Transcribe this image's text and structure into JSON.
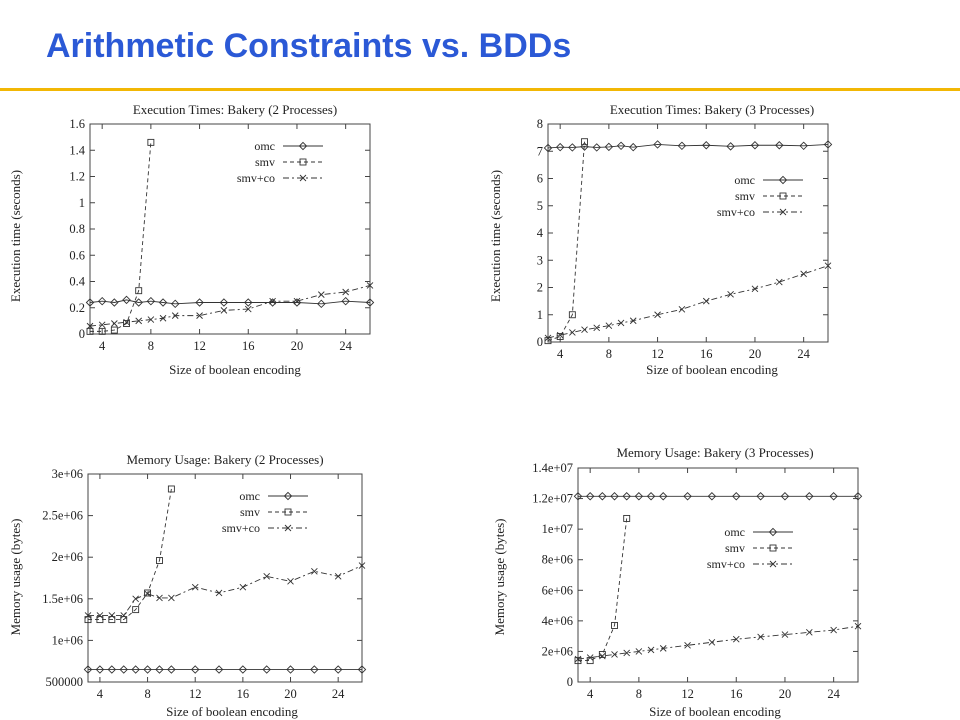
{
  "slide": {
    "title": "Arithmetic Constraints vs. BDDs"
  },
  "chart_data": [
    {
      "id": "c1",
      "type": "line",
      "title": "Execution Times: Bakery (2 Processes)",
      "xlabel": "Size of boolean encoding",
      "ylabel": "Execution time (seconds)",
      "xlim": [
        3,
        26
      ],
      "ylim": [
        0,
        1.6
      ],
      "xticks": [
        4,
        8,
        12,
        16,
        20,
        24
      ],
      "yticks": [
        0,
        0.2,
        0.4,
        0.6,
        0.8,
        1,
        1.2,
        1.4,
        1.6
      ],
      "ytick_labels": [
        "0",
        "0.2",
        "0.4",
        "0.6",
        "0.8",
        "1",
        "1.2",
        "1.4",
        "1.6"
      ],
      "legend_position": "top-right",
      "series": [
        {
          "name": "omc",
          "marker": "diamond",
          "dash": "",
          "x": [
            3,
            4,
            5,
            6,
            7,
            8,
            9,
            10,
            12,
            14,
            16,
            18,
            20,
            22,
            24,
            26
          ],
          "y": [
            0.24,
            0.25,
            0.24,
            0.26,
            0.24,
            0.25,
            0.24,
            0.23,
            0.24,
            0.24,
            0.24,
            0.24,
            0.24,
            0.23,
            0.25,
            0.24
          ]
        },
        {
          "name": "smv",
          "marker": "square",
          "dash": "4,3",
          "x": [
            3,
            4,
            5,
            6,
            7,
            8
          ],
          "y": [
            0.02,
            0.02,
            0.03,
            0.08,
            0.33,
            1.46
          ]
        },
        {
          "name": "smv+co",
          "marker": "cross",
          "dash": "6,3,2,3",
          "x": [
            3,
            4,
            5,
            6,
            7,
            8,
            9,
            10,
            12,
            14,
            16,
            18,
            20,
            22,
            24,
            26
          ],
          "y": [
            0.06,
            0.07,
            0.08,
            0.09,
            0.1,
            0.11,
            0.12,
            0.14,
            0.14,
            0.18,
            0.19,
            0.25,
            0.25,
            0.3,
            0.32,
            0.37
          ]
        }
      ]
    },
    {
      "id": "c2",
      "type": "line",
      "title": "Execution Times: Bakery (3 Processes)",
      "xlabel": "Size of boolean encoding",
      "ylabel": "Execution time (seconds)",
      "xlim": [
        3,
        26
      ],
      "ylim": [
        0,
        8
      ],
      "xticks": [
        4,
        8,
        12,
        16,
        20,
        24
      ],
      "yticks": [
        0,
        1,
        2,
        3,
        4,
        5,
        6,
        7,
        8
      ],
      "ytick_labels": [
        "0",
        "1",
        "2",
        "3",
        "4",
        "5",
        "6",
        "7",
        "8"
      ],
      "legend_position": "right",
      "series": [
        {
          "name": "omc",
          "marker": "diamond",
          "dash": "",
          "x": [
            3,
            4,
            5,
            6,
            7,
            8,
            9,
            10,
            12,
            14,
            16,
            18,
            20,
            22,
            24,
            26
          ],
          "y": [
            7.12,
            7.15,
            7.14,
            7.17,
            7.14,
            7.16,
            7.2,
            7.15,
            7.25,
            7.2,
            7.22,
            7.18,
            7.22,
            7.22,
            7.2,
            7.25
          ]
        },
        {
          "name": "smv",
          "marker": "square",
          "dash": "4,3",
          "x": [
            3,
            4,
            5,
            6
          ],
          "y": [
            0.05,
            0.2,
            1.0,
            7.35
          ]
        },
        {
          "name": "smv+co",
          "marker": "cross",
          "dash": "6,3,2,3",
          "x": [
            3,
            4,
            5,
            6,
            7,
            8,
            9,
            10,
            12,
            14,
            16,
            18,
            20,
            22,
            24,
            26
          ],
          "y": [
            0.15,
            0.25,
            0.35,
            0.45,
            0.52,
            0.6,
            0.7,
            0.78,
            1.0,
            1.2,
            1.5,
            1.75,
            1.95,
            2.2,
            2.5,
            2.8
          ]
        }
      ]
    },
    {
      "id": "c3",
      "type": "line",
      "title": "Memory Usage: Bakery (2 Processes)",
      "xlabel": "Size of boolean encoding",
      "ylabel": "Memory usage (bytes)",
      "xlim": [
        3,
        26
      ],
      "ylim": [
        500000,
        3000000
      ],
      "xticks": [
        4,
        8,
        12,
        16,
        20,
        24
      ],
      "yticks": [
        500000,
        1000000,
        1500000,
        2000000,
        2500000,
        3000000
      ],
      "ytick_labels": [
        "500000",
        "1e+06",
        "1.5e+06",
        "2e+06",
        "2.5e+06",
        "3e+06"
      ],
      "legend_position": "top-right",
      "series": [
        {
          "name": "omc",
          "marker": "diamond",
          "dash": "",
          "x": [
            3,
            4,
            5,
            6,
            7,
            8,
            9,
            10,
            12,
            14,
            16,
            18,
            20,
            22,
            24,
            26
          ],
          "y": [
            650000,
            650000,
            650000,
            650000,
            650000,
            650000,
            650000,
            650000,
            650000,
            650000,
            650000,
            650000,
            650000,
            650000,
            650000,
            650000
          ]
        },
        {
          "name": "smv",
          "marker": "square",
          "dash": "4,3",
          "x": [
            3,
            4,
            5,
            6,
            7,
            8,
            9,
            10
          ],
          "y": [
            1250000,
            1250000,
            1250000,
            1250000,
            1370000,
            1570000,
            1960000,
            2820000
          ]
        },
        {
          "name": "smv+co",
          "marker": "cross",
          "dash": "6,3,2,3",
          "x": [
            3,
            4,
            5,
            6,
            7,
            8,
            9,
            10,
            12,
            14,
            16,
            18,
            20,
            22,
            24,
            26
          ],
          "y": [
            1300000,
            1300000,
            1300000,
            1300000,
            1500000,
            1560000,
            1510000,
            1510000,
            1640000,
            1570000,
            1640000,
            1770000,
            1710000,
            1830000,
            1770000,
            1900000
          ]
        }
      ]
    },
    {
      "id": "c4",
      "type": "line",
      "title": "Memory Usage: Bakery (3 Processes)",
      "xlabel": "Size of boolean encoding",
      "ylabel": "Memory usage (bytes)",
      "xlim": [
        3,
        26
      ],
      "ylim": [
        0,
        14000000
      ],
      "xticks": [
        4,
        8,
        12,
        16,
        20,
        24
      ],
      "yticks": [
        0,
        2000000,
        4000000,
        6000000,
        8000000,
        10000000,
        12000000,
        14000000
      ],
      "ytick_labels": [
        "0",
        "2e+06",
        "4e+06",
        "6e+06",
        "8e+06",
        "1e+07",
        "1.2e+07",
        "1.4e+07"
      ],
      "legend_position": "right",
      "series": [
        {
          "name": "omc",
          "marker": "diamond",
          "dash": "",
          "x": [
            3,
            4,
            5,
            6,
            7,
            8,
            9,
            10,
            12,
            14,
            16,
            18,
            20,
            22,
            24,
            26
          ],
          "y": [
            12150000,
            12150000,
            12150000,
            12150000,
            12150000,
            12150000,
            12150000,
            12150000,
            12150000,
            12150000,
            12150000,
            12150000,
            12150000,
            12150000,
            12150000,
            12150000
          ]
        },
        {
          "name": "smv",
          "marker": "square",
          "dash": "4,3",
          "x": [
            3,
            4,
            5,
            6,
            7
          ],
          "y": [
            1400000,
            1400000,
            1800000,
            3700000,
            10700000
          ]
        },
        {
          "name": "smv+co",
          "marker": "cross",
          "dash": "6,3,2,3",
          "x": [
            3,
            4,
            5,
            6,
            7,
            8,
            9,
            10,
            12,
            14,
            16,
            18,
            20,
            22,
            24,
            26
          ],
          "y": [
            1500000,
            1600000,
            1700000,
            1800000,
            1900000,
            2000000,
            2100000,
            2200000,
            2400000,
            2600000,
            2800000,
            2950000,
            3100000,
            3250000,
            3400000,
            3650000
          ]
        }
      ]
    }
  ]
}
